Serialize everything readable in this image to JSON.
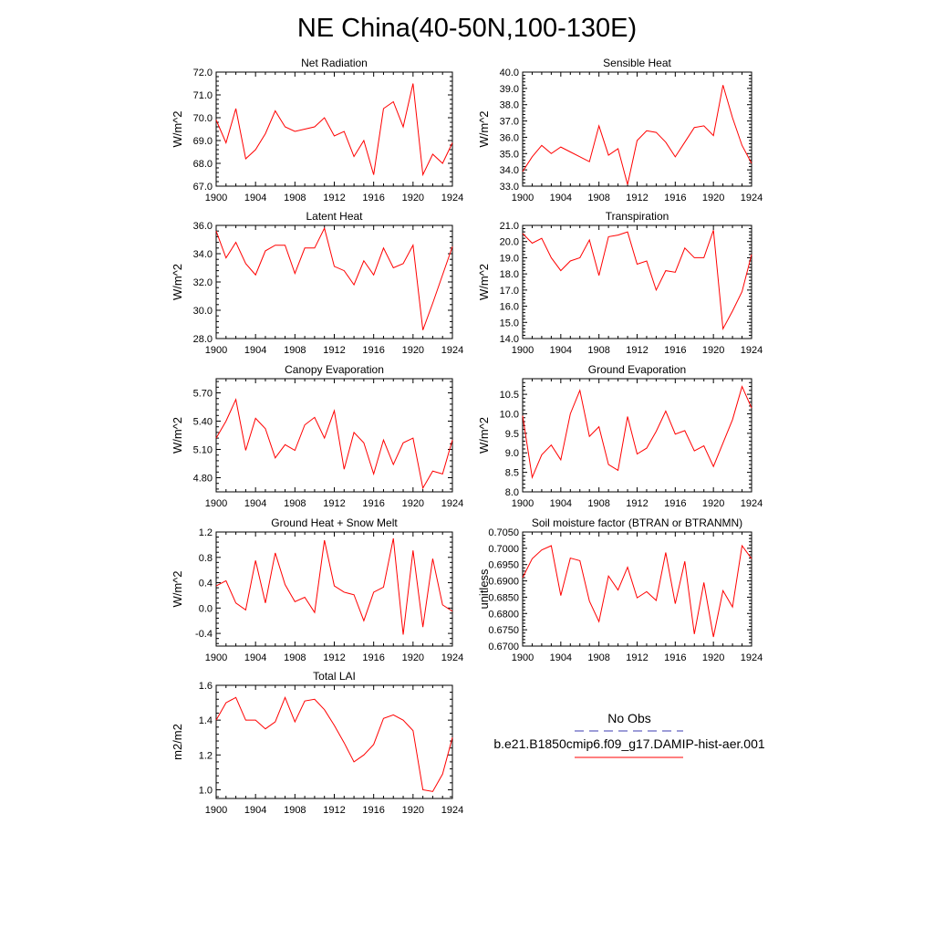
{
  "page_title": "NE China(40-50N,100-130E)",
  "legend": {
    "obs_label": "No Obs",
    "model_label": "b.e21.B1850cmip6.f09_g17.DAMIP-hist-aer.001",
    "obs_color": "#3b3bb0",
    "model_color": "#ff0000"
  },
  "chart_data": [
    {
      "type": "line",
      "title": "Net Radiation",
      "ylabel": "W/m^2",
      "xlim": [
        1900,
        1924
      ],
      "ylim": [
        67.0,
        72.0
      ],
      "xticks": [
        "1900",
        "1904",
        "1908",
        "1912",
        "1916",
        "1920",
        "1924"
      ],
      "yticks": [
        "67.0",
        "68.0",
        "69.0",
        "70.0",
        "71.0",
        "72.0"
      ],
      "x": [
        1900,
        1901,
        1902,
        1903,
        1904,
        1905,
        1906,
        1907,
        1908,
        1909,
        1910,
        1911,
        1912,
        1913,
        1914,
        1915,
        1916,
        1917,
        1918,
        1919,
        1920,
        1921,
        1922,
        1923,
        1924
      ],
      "series": [
        {
          "color": "#ff0000",
          "values": [
            69.9,
            68.9,
            70.4,
            68.2,
            68.6,
            69.3,
            70.3,
            69.6,
            69.4,
            69.5,
            69.6,
            70.0,
            69.2,
            69.4,
            68.3,
            69.0,
            67.5,
            70.4,
            70.7,
            69.6,
            71.5,
            67.5,
            68.4,
            68.0,
            68.9
          ]
        }
      ],
      "grid": false
    },
    {
      "type": "line",
      "title": "Sensible Heat",
      "ylabel": "W/m^2",
      "xlim": [
        1900,
        1924
      ],
      "ylim": [
        33.0,
        40.0
      ],
      "xticks": [
        "1900",
        "1904",
        "1908",
        "1912",
        "1916",
        "1920",
        "1924"
      ],
      "yticks": [
        "33.0",
        "34.0",
        "35.0",
        "36.0",
        "37.0",
        "38.0",
        "39.0",
        "40.0"
      ],
      "x": [
        1900,
        1901,
        1902,
        1903,
        1904,
        1905,
        1906,
        1907,
        1908,
        1909,
        1910,
        1911,
        1912,
        1913,
        1914,
        1915,
        1916,
        1917,
        1918,
        1919,
        1920,
        1921,
        1922,
        1923,
        1924
      ],
      "series": [
        {
          "color": "#ff0000",
          "values": [
            33.9,
            34.8,
            35.5,
            35.0,
            35.4,
            35.1,
            34.8,
            34.5,
            36.7,
            34.9,
            35.3,
            33.1,
            35.8,
            36.4,
            36.3,
            35.7,
            34.8,
            35.7,
            36.6,
            36.7,
            36.1,
            39.2,
            37.2,
            35.5,
            34.4
          ]
        }
      ],
      "grid": false
    },
    {
      "type": "line",
      "title": "Latent Heat",
      "ylabel": "W/m^2",
      "xlim": [
        1900,
        1924
      ],
      "ylim": [
        28.0,
        36.0
      ],
      "xticks": [
        "1900",
        "1904",
        "1908",
        "1912",
        "1916",
        "1920",
        "1924"
      ],
      "yticks": [
        "28.0",
        "30.0",
        "32.0",
        "34.0",
        "36.0"
      ],
      "x": [
        1900,
        1901,
        1902,
        1903,
        1904,
        1905,
        1906,
        1907,
        1908,
        1909,
        1910,
        1911,
        1912,
        1913,
        1914,
        1915,
        1916,
        1917,
        1918,
        1919,
        1920,
        1921,
        1922,
        1923,
        1924
      ],
      "series": [
        {
          "color": "#ff0000",
          "values": [
            35.6,
            33.7,
            34.8,
            33.3,
            32.5,
            34.2,
            34.6,
            34.6,
            32.6,
            34.4,
            34.4,
            35.8,
            33.1,
            32.8,
            31.8,
            33.5,
            32.5,
            34.4,
            33.0,
            33.3,
            34.6,
            28.6,
            30.5,
            32.5,
            34.5
          ]
        }
      ],
      "grid": false
    },
    {
      "type": "line",
      "title": "Transpiration",
      "ylabel": "W/m^2",
      "xlim": [
        1900,
        1924
      ],
      "ylim": [
        14.0,
        21.0
      ],
      "xticks": [
        "1900",
        "1904",
        "1908",
        "1912",
        "1916",
        "1920",
        "1924"
      ],
      "yticks": [
        "14.0",
        "15.0",
        "16.0",
        "17.0",
        "18.0",
        "19.0",
        "20.0",
        "21.0"
      ],
      "x": [
        1900,
        1901,
        1902,
        1903,
        1904,
        1905,
        1906,
        1907,
        1908,
        1909,
        1910,
        1911,
        1912,
        1913,
        1914,
        1915,
        1916,
        1917,
        1918,
        1919,
        1920,
        1921,
        1922,
        1923,
        1924
      ],
      "series": [
        {
          "color": "#ff0000",
          "values": [
            20.5,
            19.9,
            20.2,
            19.0,
            18.2,
            18.8,
            19.0,
            20.1,
            17.9,
            20.3,
            20.4,
            20.6,
            18.6,
            18.8,
            17.0,
            18.2,
            18.1,
            19.6,
            19.0,
            19.0,
            20.7,
            14.6,
            15.7,
            16.9,
            19.2
          ]
        }
      ],
      "grid": false
    },
    {
      "type": "line",
      "title": "Canopy Evaporation",
      "ylabel": "W/m^2",
      "xlim": [
        1900,
        1924
      ],
      "ylim": [
        4.65,
        5.85
      ],
      "xticks": [
        "1900",
        "1904",
        "1908",
        "1912",
        "1916",
        "1920",
        "1924"
      ],
      "yticks": [
        "4.80",
        "5.10",
        "5.40",
        "5.70"
      ],
      "x": [
        1900,
        1901,
        1902,
        1903,
        1904,
        1905,
        1906,
        1907,
        1908,
        1909,
        1910,
        1911,
        1912,
        1913,
        1914,
        1915,
        1916,
        1917,
        1918,
        1919,
        1920,
        1921,
        1922,
        1923,
        1924
      ],
      "series": [
        {
          "color": "#ff0000",
          "values": [
            5.22,
            5.4,
            5.63,
            5.09,
            5.43,
            5.32,
            5.01,
            5.15,
            5.09,
            5.36,
            5.44,
            5.22,
            5.51,
            4.89,
            5.28,
            5.17,
            4.84,
            5.2,
            4.94,
            5.17,
            5.22,
            4.69,
            4.87,
            4.84,
            5.2
          ]
        }
      ],
      "grid": false
    },
    {
      "type": "line",
      "title": "Ground Evaporation",
      "ylabel": "W/m^2",
      "xlim": [
        1900,
        1924
      ],
      "ylim": [
        8.0,
        10.9
      ],
      "xticks": [
        "1900",
        "1904",
        "1908",
        "1912",
        "1916",
        "1920",
        "1924"
      ],
      "yticks": [
        "8.0",
        "8.5",
        "9.0",
        "9.5",
        "10.0",
        "10.5"
      ],
      "x": [
        1900,
        1901,
        1902,
        1903,
        1904,
        1905,
        1906,
        1907,
        1908,
        1909,
        1910,
        1911,
        1912,
        1913,
        1914,
        1915,
        1916,
        1917,
        1918,
        1919,
        1920,
        1921,
        1922,
        1923,
        1924
      ],
      "series": [
        {
          "color": "#ff0000",
          "values": [
            9.95,
            8.37,
            8.95,
            9.2,
            8.82,
            10.0,
            10.6,
            9.42,
            9.67,
            8.7,
            8.55,
            9.93,
            8.97,
            9.12,
            9.55,
            10.07,
            9.48,
            9.57,
            9.05,
            9.18,
            8.65,
            9.25,
            9.85,
            10.7,
            10.15
          ]
        }
      ],
      "grid": false
    },
    {
      "type": "line",
      "title": "Ground Heat + Snow Melt",
      "ylabel": "W/m^2",
      "xlim": [
        1900,
        1924
      ],
      "ylim": [
        -0.6,
        1.2
      ],
      "xticks": [
        "1900",
        "1904",
        "1908",
        "1912",
        "1916",
        "1920",
        "1924"
      ],
      "yticks": [
        "-0.4",
        "0.0",
        "0.4",
        "0.8",
        "1.2"
      ],
      "x": [
        1900,
        1901,
        1902,
        1903,
        1904,
        1905,
        1906,
        1907,
        1908,
        1909,
        1910,
        1911,
        1912,
        1913,
        1914,
        1915,
        1916,
        1917,
        1918,
        1919,
        1920,
        1921,
        1922,
        1923,
        1924
      ],
      "series": [
        {
          "color": "#ff0000",
          "values": [
            0.35,
            0.43,
            0.08,
            -0.03,
            0.75,
            0.08,
            0.87,
            0.37,
            0.1,
            0.17,
            -0.07,
            1.07,
            0.35,
            0.25,
            0.21,
            -0.2,
            0.25,
            0.33,
            1.1,
            -0.42,
            0.91,
            -0.3,
            0.78,
            0.05,
            -0.05
          ]
        }
      ],
      "grid": false
    },
    {
      "type": "line",
      "title": "Soil moisture factor (BTRAN or BTRANMN)",
      "ylabel": "unitless",
      "xlim": [
        1900,
        1924
      ],
      "ylim": [
        0.67,
        0.705
      ],
      "xticks": [
        "1900",
        "1904",
        "1908",
        "1912",
        "1916",
        "1920",
        "1924"
      ],
      "yticks": [
        "0.6700",
        "0.6750",
        "0.6800",
        "0.6850",
        "0.6900",
        "0.6950",
        "0.7000",
        "0.7050"
      ],
      "x": [
        1900,
        1901,
        1902,
        1903,
        1904,
        1905,
        1906,
        1907,
        1908,
        1909,
        1910,
        1911,
        1912,
        1913,
        1914,
        1915,
        1916,
        1917,
        1918,
        1919,
        1920,
        1921,
        1922,
        1923,
        1924
      ],
      "series": [
        {
          "color": "#ff0000",
          "values": [
            0.691,
            0.6968,
            0.6995,
            0.7008,
            0.6855,
            0.697,
            0.6962,
            0.6838,
            0.6775,
            0.6915,
            0.6872,
            0.6942,
            0.6848,
            0.6867,
            0.684,
            0.6987,
            0.683,
            0.696,
            0.6737,
            0.6895,
            0.6728,
            0.687,
            0.682,
            0.7008,
            0.6968
          ]
        }
      ],
      "grid": false
    },
    {
      "type": "line",
      "title": "Total LAI",
      "ylabel": "m2/m2",
      "xlim": [
        1900,
        1924
      ],
      "ylim": [
        0.95,
        1.6
      ],
      "xticks": [
        "1900",
        "1904",
        "1908",
        "1912",
        "1916",
        "1920",
        "1924"
      ],
      "yticks": [
        "1.0",
        "1.2",
        "1.4",
        "1.6"
      ],
      "x": [
        1900,
        1901,
        1902,
        1903,
        1904,
        1905,
        1906,
        1907,
        1908,
        1909,
        1910,
        1911,
        1912,
        1913,
        1914,
        1915,
        1916,
        1917,
        1918,
        1919,
        1920,
        1921,
        1922,
        1923,
        1924
      ],
      "series": [
        {
          "color": "#ff0000",
          "values": [
            1.4,
            1.5,
            1.53,
            1.4,
            1.4,
            1.35,
            1.39,
            1.53,
            1.39,
            1.51,
            1.52,
            1.46,
            1.37,
            1.27,
            1.16,
            1.2,
            1.26,
            1.41,
            1.43,
            1.4,
            1.34,
            1.0,
            0.99,
            1.09,
            1.3
          ]
        }
      ],
      "grid": false
    }
  ]
}
